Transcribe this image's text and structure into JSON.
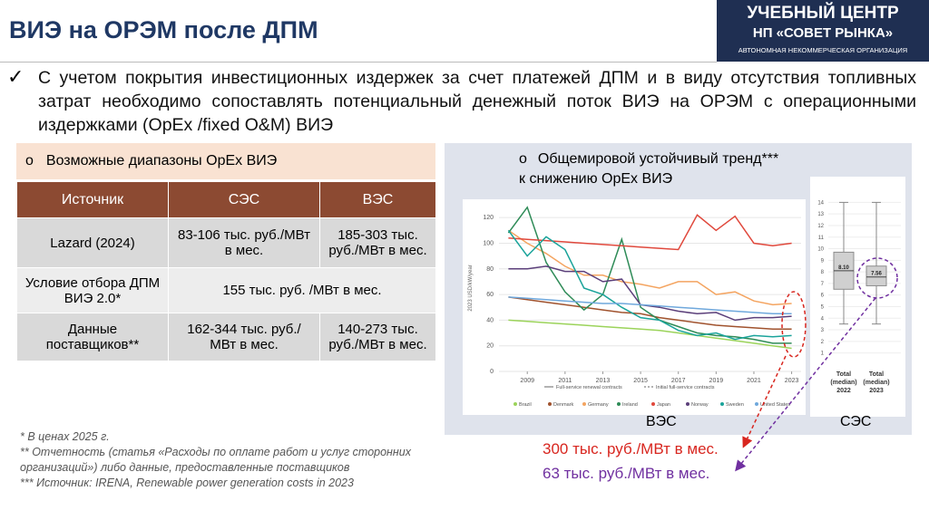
{
  "header": {
    "title": "ВИЭ на ОРЭМ после ДПМ",
    "logo": [
      "УЧЕБНЫЙ ЦЕНТР",
      "НП «СОВЕТ РЫНКА»",
      "АВТОНОМНАЯ НЕКОММЕРЧЕСКАЯ ОРГАНИЗАЦИЯ"
    ]
  },
  "intro": "С учетом покрытия инвестиционных издержек за счет платежей ДПМ и в виду отсутствия топливных затрат необходимо сопоставлять потенциальный денежный поток ВИЭ на ОРЭМ с операционными издержками (OpEx /fixed O&M) ВИЭ",
  "opex_table": {
    "caption": "Возможные диапазоны OpEx ВИЭ",
    "columns": [
      "Источник",
      "СЭС",
      "ВЭС"
    ],
    "rows": [
      [
        "Lazard (2024)",
        "83-106 тыс. руб./МВт в мес.",
        "185-303 тыс. руб./МВт в мес."
      ],
      [
        "Условие отбора ДПМ ВИЭ 2.0*",
        "155 тыс. руб. /МВт в мес."
      ],
      [
        "Данные поставщиков**",
        "162-344 тыс. руб./МВт в мес.",
        "140-273 тыс. руб./МВт в мес."
      ]
    ]
  },
  "footnotes": [
    "* В ценах 2025 г.",
    "** Отчетность (статья «Расходы по оплате работ и услуг сторонних организаций») либо данные, предоставленные поставщиков",
    "*** Источник:  IRENA, Renewable power generation costs in 2023"
  ],
  "trend": {
    "caption": [
      "Общемировой устойчивый тренд***",
      "к снижению OpEx ВИЭ"
    ],
    "wind_label": "ВЭС",
    "solar_label": "СЭС",
    "wind_estimate": "300 тыс. руб./МВт в мес.",
    "solar_estimate": "63 тыс. руб./МВт в мес."
  },
  "wind_chart": {
    "type": "line",
    "ylabel": "2023 USD/kW/year",
    "x": [
      2008,
      2009,
      2010,
      2011,
      2012,
      2013,
      2014,
      2015,
      2016,
      2017,
      2018,
      2019,
      2020,
      2021,
      2022,
      2023
    ],
    "xlim": [
      2007.5,
      2023.5
    ],
    "xticks": [
      2009,
      2011,
      2013,
      2015,
      2017,
      2019,
      2021,
      2023
    ],
    "ylim": [
      0,
      130
    ],
    "yticks": [
      0,
      20,
      40,
      60,
      80,
      100,
      120
    ],
    "grid": true,
    "contract_legend": [
      "Full-service renewal contracts",
      "Initial full-service contracts"
    ],
    "series": [
      {
        "name": "Brazil",
        "color": "#9bd35a",
        "values": [
          40,
          39,
          38,
          37,
          36,
          35,
          34,
          33,
          32,
          30,
          28,
          26,
          24,
          22,
          20,
          18
        ]
      },
      {
        "name": "Denmark",
        "color": "#a0522d",
        "values": [
          58,
          56,
          54,
          52,
          50,
          48,
          46,
          45,
          42,
          40,
          38,
          36,
          35,
          34,
          33,
          33
        ]
      },
      {
        "name": "Germany",
        "color": "#f4a460",
        "values": [
          110,
          100,
          92,
          82,
          75,
          75,
          70,
          68,
          65,
          70,
          70,
          60,
          62,
          55,
          52,
          53
        ]
      },
      {
        "name": "Ireland",
        "color": "#2e8b57",
        "values": [
          108,
          128,
          85,
          62,
          48,
          60,
          103,
          50,
          40,
          35,
          30,
          28,
          27,
          25,
          22,
          22
        ]
      },
      {
        "name": "Japan",
        "color": "#e0483c",
        "values": [
          104,
          103,
          102,
          101,
          100,
          99,
          98,
          97,
          96,
          95,
          122,
          110,
          121,
          100,
          98,
          100
        ]
      },
      {
        "name": "Norway",
        "color": "#5b3f7a",
        "values": [
          80,
          80,
          82,
          78,
          78,
          70,
          72,
          52,
          50,
          47,
          45,
          46,
          40,
          42,
          42,
          43
        ]
      },
      {
        "name": "Sweden",
        "color": "#1aa39a",
        "values": [
          110,
          90,
          105,
          95,
          65,
          60,
          50,
          42,
          40,
          32,
          28,
          30,
          25,
          28,
          27,
          28
        ]
      },
      {
        "name": "United States",
        "color": "#6fa8dc",
        "values": [
          58,
          57,
          56,
          55,
          54,
          53,
          53,
          52,
          51,
          50,
          49,
          48,
          47,
          46,
          45,
          45
        ]
      }
    ]
  },
  "solar_chart": {
    "type": "box",
    "categories": [
      "Total (median) 2022",
      "Total (median) 2023"
    ],
    "ylim": [
      0.5,
      14.5
    ],
    "yticks": [
      1,
      2,
      3,
      4,
      5,
      6,
      7,
      8,
      9,
      10,
      11,
      12,
      13,
      14
    ],
    "color": "#8c8c8c",
    "whisker_low": [
      3.5,
      3.5
    ],
    "q1": [
      6.5,
      6.8
    ],
    "median": [
      8.1,
      7.56
    ],
    "median_labels": [
      "8.10",
      "7.56"
    ],
    "q3": [
      9.7,
      8.5
    ],
    "whisker_high": [
      14,
      14
    ]
  }
}
